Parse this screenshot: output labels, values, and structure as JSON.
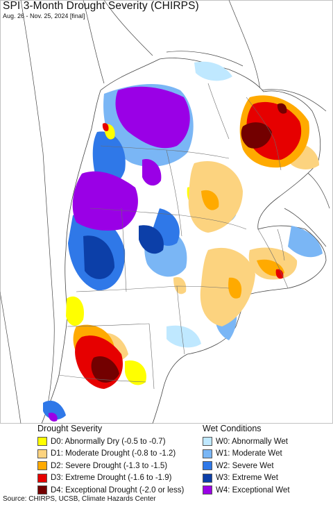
{
  "title": "SPI 3-Month Drought Severity (CHIRPS)",
  "subtitle": "Aug. 26 - Nov. 25, 2024 [final]",
  "legend": {
    "drought_title": "Drought Severity",
    "wet_title": "Wet Conditions",
    "drought": [
      {
        "label": "D0: Abnormally Dry (-0.5 to -0.7)",
        "color": "#ffff00"
      },
      {
        "label": "D1: Moderate Drought (-0.8 to -1.2)",
        "color": "#fcd37f"
      },
      {
        "label": "D2: Severe Drought (-1.3 to -1.5)",
        "color": "#ffaa00"
      },
      {
        "label": "D3: Extreme Drought (-1.6 to -1.9)",
        "color": "#e60000"
      },
      {
        "label": "D4: Exceptional Drought (-2.0 or less)",
        "color": "#730000"
      }
    ],
    "wet": [
      {
        "label": "W0: Abnormally Wet",
        "color": "#bfe8ff"
      },
      {
        "label": "W1: Moderate Wet",
        "color": "#7ab6f5"
      },
      {
        "label": "W2: Severe Wet",
        "color": "#2f78e8"
      },
      {
        "label": "W3: Extreme Wet",
        "color": "#0c3fa8"
      },
      {
        "label": "W4: Exceptional Wet",
        "color": "#9a00e6"
      }
    ]
  },
  "source": "Source: CHIRPS, UCSB, Climate Hazards Center"
}
